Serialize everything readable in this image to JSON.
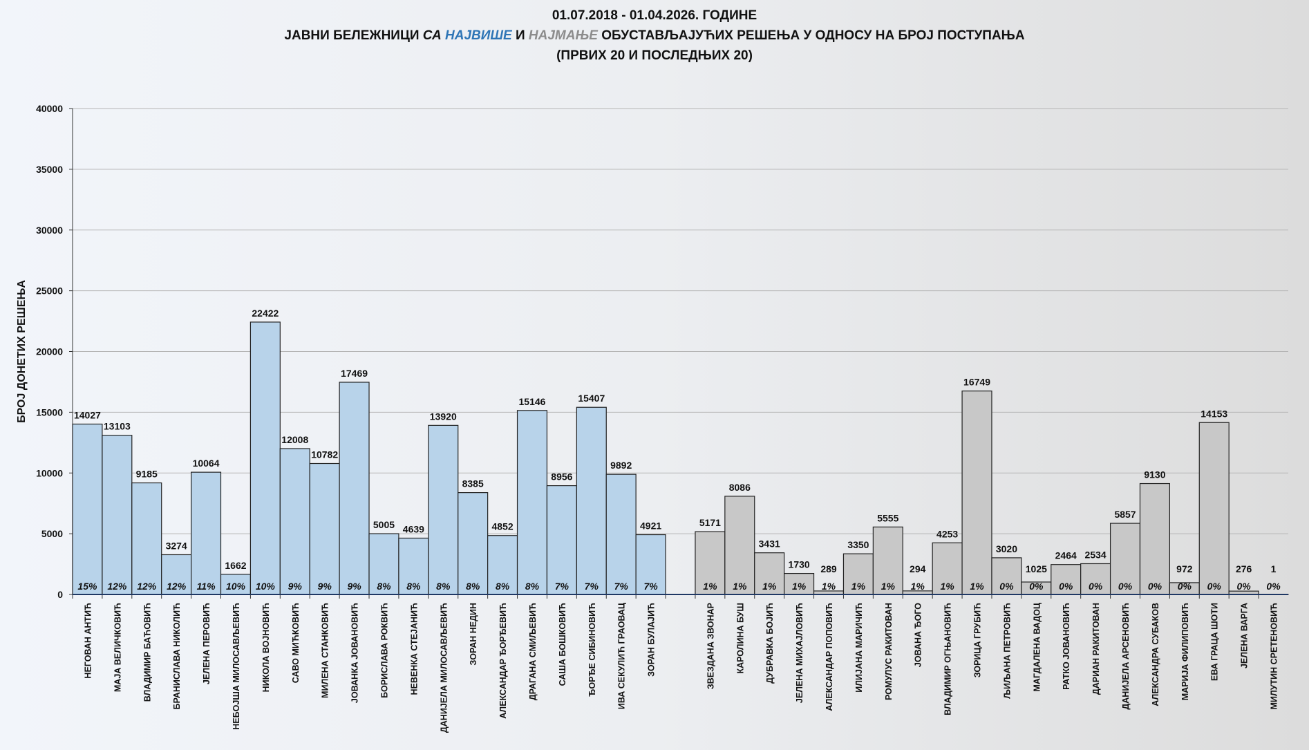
{
  "chart_data": {
    "type": "bar",
    "title": {
      "line1": "01.07.2018 - 01.04.2026. ГОДИНЕ",
      "line2_a": "ЈАВНИ БЕЛЕЖНИЦИ ",
      "line2_b": "СА ",
      "line2_c": "НАЈВИШЕ",
      "line2_d": " И ",
      "line2_e": "НАЈМАЊЕ",
      "line2_f": " ОБУСТАВЉАЈУЋИХ РЕШЕЊА У ОДНОСУ НА БРОЈ ПОСТУПАЊА",
      "line3": "(ПРВИХ 20 И ПОСЛЕДЊИХ 20)"
    },
    "ylabel": "БРОЈ ДОНЕТИХ РЕШЕЊА",
    "xlabel": "",
    "ylim": [
      0,
      40000
    ],
    "yticks": [
      0,
      5000,
      10000,
      15000,
      20000,
      25000,
      30000,
      35000,
      40000
    ],
    "grid": true,
    "colors": {
      "top": "#b8d3ea",
      "bottom": "#c8c8c8",
      "title_top": "#2e75b6",
      "title_bottom": "#8c8c8c"
    },
    "series": [
      {
        "group": "top",
        "categories": [
          "НЕГОВАН АНТИЋ",
          "МАЈА ВЕЛИЧКОВИЋ",
          "ВЛАДИМИР БАЋОВИЋ",
          "БРАНИСЛАВА НИКОЛИЋ",
          "ЈЕЛЕНА ПЕРОВИЋ",
          "НЕБОЈША МИЛОСАВЉЕВИЋ",
          "НИКОЛА ВОЈНОВИЋ",
          "САВО МИЋКОВИЋ",
          "МИЛЕНА СТАНКОВИЋ",
          "ЈОВАНКА ЈОВАНОВИЋ",
          "БОРИСЛАВА РОКВИЋ",
          "НЕВЕНКА СТЕЈАНИЋ",
          "ДАНИЈЕЛА МИЛОСАВЉЕВИЋ",
          "ЗОРАН НЕДИН",
          "АЛЕКСАНДАР ЂОРЂЕВИЋ",
          "ДРАГАНА СМИЉЕВИЋ",
          "САША БОШКОВИЋ",
          "ЂОРЂЕ СИБИНОВИЋ",
          "ИВА СЕКУЛИЋ ГРАОВАЦ",
          "ЗОРАН БУЛАЈИЋ"
        ],
        "values": [
          14027,
          13103,
          9185,
          3274,
          10064,
          1662,
          22422,
          12008,
          10782,
          17469,
          5005,
          4639,
          13920,
          8385,
          4852,
          15146,
          8956,
          15407,
          9892,
          4921
        ],
        "percents": [
          "15%",
          "12%",
          "12%",
          "12%",
          "11%",
          "10%",
          "10%",
          "9%",
          "9%",
          "9%",
          "8%",
          "8%",
          "8%",
          "8%",
          "8%",
          "8%",
          "7%",
          "7%",
          "7%",
          "7%"
        ]
      },
      {
        "group": "bottom",
        "categories": [
          "ЗВЕЗДАНА ЗВОНАР",
          "КАРОЛИНА БУШ",
          "ДУБРАВКА БОЈИЋ",
          "ЈЕЛЕНА МИХАЈЛОВИЋ",
          "АЛЕКСАНДАР ПОПОВИЋ",
          "ИЛИЈАНА МАРИЧИЋ",
          "РОМУЛУС РАКИТОВАН",
          "ЈОВАНА ЂОГО",
          "ВЛАДИМИР ОГЊАНОВИЋ",
          "ЗОРИЦА ГРУБИЋ",
          "ЉИЉАНА ПЕТРОВИЋ",
          "МАГДАЛЕНА ВАДОЦ",
          "РАТКО ЈОВАНОВИЋ",
          "ДАРИАН РАКИТОВАН",
          "ДАНИЈЕЛА АРСЕНОВИЋ",
          "АЛЕКСАНДРА СУБАКОВ",
          "МАРИЈА ФИЛИПОВИЋ",
          "ЕВА ГРАЦА ШОТИ",
          "ЈЕЛЕНА ВАРГА",
          "МИЛУТИН СРЕТЕНОВИЋ"
        ],
        "values": [
          5171,
          8086,
          3431,
          1730,
          289,
          3350,
          5555,
          294,
          4253,
          16749,
          3020,
          1025,
          2464,
          2534,
          5857,
          9130,
          972,
          14153,
          276,
          1
        ],
        "percents": [
          "1%",
          "1%",
          "1%",
          "1%",
          "1%",
          "1%",
          "1%",
          "1%",
          "1%",
          "1%",
          "0%",
          "0%",
          "0%",
          "0%",
          "0%",
          "0%",
          "0%",
          "0%",
          "0%",
          "0%"
        ]
      }
    ]
  }
}
